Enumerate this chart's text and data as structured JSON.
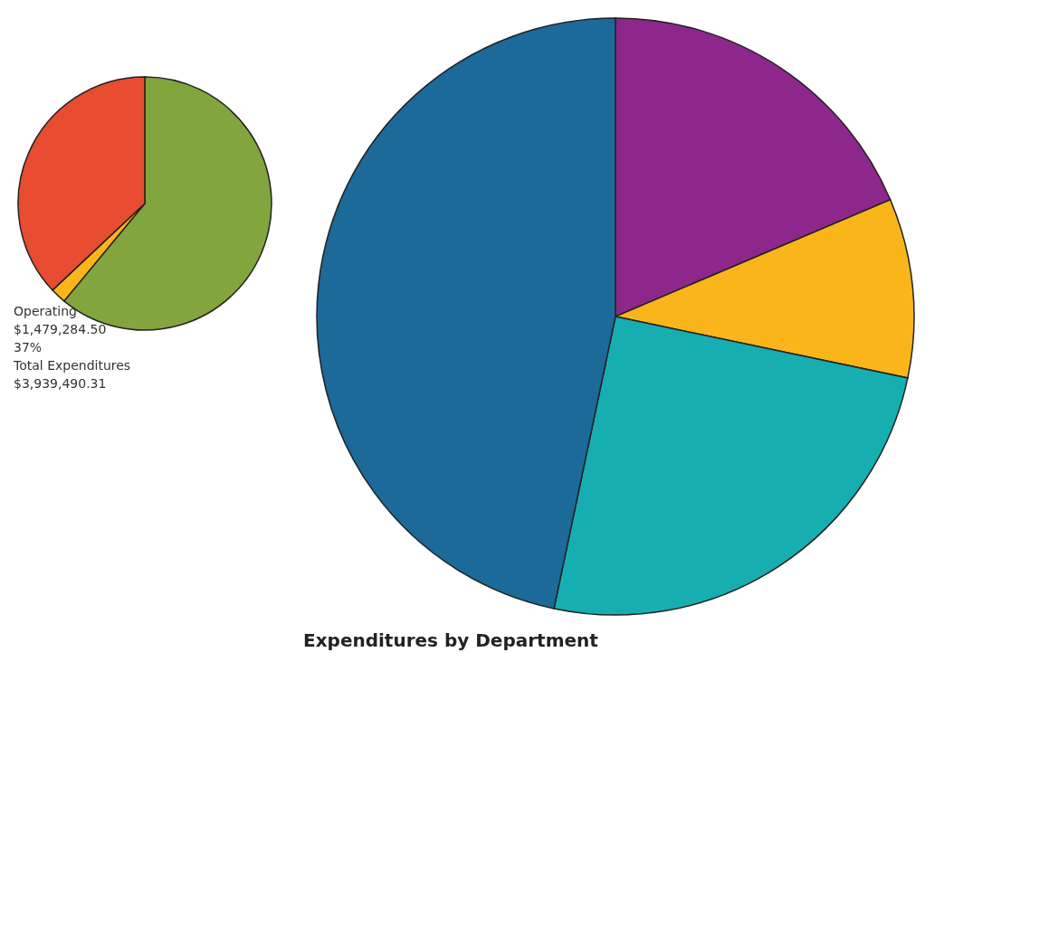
{
  "chart_data": [
    {
      "type": "pie",
      "categories": [
        null,
        null,
        null
      ],
      "values": [
        61,
        2,
        37
      ],
      "colors": [
        "#82a53e",
        "#f9b51a",
        "#e84c31"
      ],
      "annotations": [
        "Operating",
        "$1,479,284.50",
        "37%",
        "Total Expenditures",
        "$3,939,490.31"
      ]
    },
    {
      "type": "pie",
      "title": "Expenditures by Department",
      "categories": [
        null,
        null,
        null,
        null
      ],
      "values": [
        18.6,
        9.7,
        25,
        46.7
      ],
      "colors": [
        "#8e278b",
        "#f9b51a",
        "#17aeb1",
        "#1b6a99"
      ]
    }
  ]
}
